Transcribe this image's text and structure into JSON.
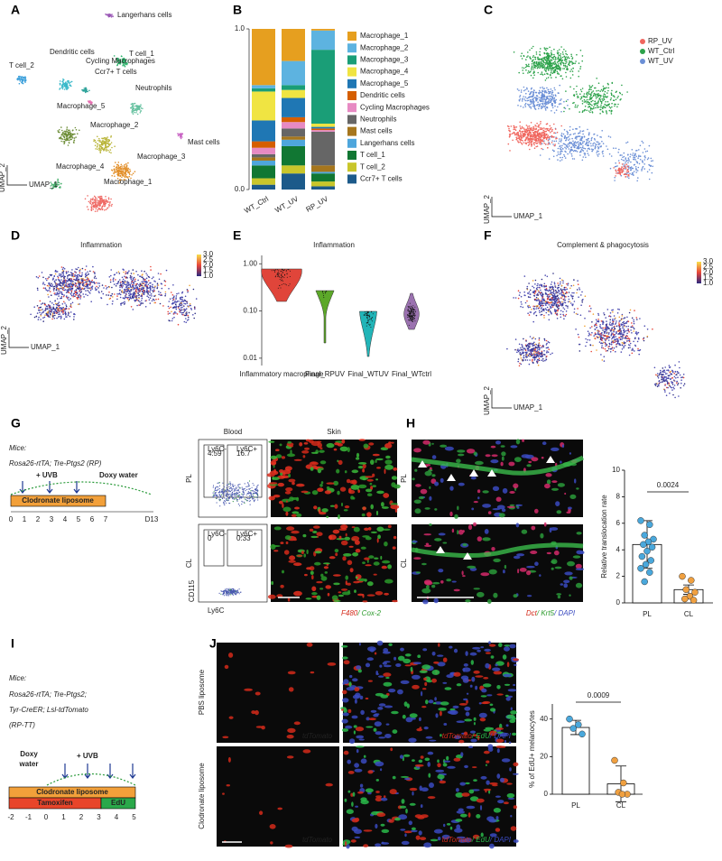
{
  "panel_labels": [
    "A",
    "B",
    "C",
    "D",
    "E",
    "F",
    "G",
    "H",
    "I",
    "J"
  ],
  "umap_a": {
    "clusters": [
      "Langerhans cells",
      "T cell_1",
      "T cell_2",
      "Dendritic cells",
      "Cycling Macrophages",
      "Ccr7+ T cells",
      "Neutrophils",
      "Macrophage_5",
      "Macrophage_2",
      "Mast cells",
      "Macrophage_3",
      "Macrophage_4",
      "Macrophage_1"
    ],
    "x_axis": "UMAP_1",
    "y_axis": "UMAP_2"
  },
  "umap_c": {
    "groups": [
      {
        "name": "RP_UV",
        "color": "#f0665e"
      },
      {
        "name": "WT_Ctrl",
        "color": "#2ca24a"
      },
      {
        "name": "WT_UV",
        "color": "#6b8fd6"
      }
    ],
    "x_axis": "UMAP_1",
    "y_axis": "UMAP_2"
  },
  "umap_d": {
    "title": "Inflammation",
    "colorbar": [
      "3.0",
      "2.5",
      "2.0",
      "1.5",
      "1.0"
    ],
    "x_axis": "UMAP_1",
    "y_axis": "UMAP_2"
  },
  "umap_f": {
    "title": "Complement & phagocytosis",
    "colorbar": [
      "3.0",
      "2.5",
      "2.0",
      "1.5",
      "1.0"
    ],
    "x_axis": "UMAP_1",
    "y_axis": "UMAP_2"
  },
  "panel_g": {
    "mice": "Mice:",
    "strain": "Rosa26-rtTA; Tre-Ptgs2 (RP)",
    "uvb": "+ UVB",
    "doxy": "Doxy water",
    "liposome": "Clodronate liposome",
    "days": [
      "0",
      "1",
      "2",
      "3",
      "4",
      "5",
      "6",
      "7"
    ],
    "end_day": "D13",
    "blood": "Blood",
    "skin": "Skin",
    "rows": [
      "PL",
      "CL"
    ],
    "gates": [
      [
        {
          "name": "Ly6C-",
          "value": 4.59
        },
        {
          "name": "Ly6C+",
          "value": 16.7
        }
      ],
      [
        {
          "name": "Ly6C-",
          "value": 0
        },
        {
          "name": "Ly6C+",
          "value": 0.33
        }
      ]
    ],
    "y_axis": "CD115",
    "x_axis": "Ly6C",
    "stain": [
      "F480",
      "/ Cox-2"
    ]
  },
  "panel_h": {
    "rows": [
      "PL",
      "CL"
    ],
    "stain": [
      "Dct",
      "/ Krt5",
      "/ DAPI"
    ]
  },
  "panel_i": {
    "mice": "Mice:",
    "strain": [
      "Rosa26-rtTA; Tre-Ptgs2;",
      "Tyr-CreER; Lsl-tdTomato",
      "(RP-TT)"
    ],
    "doxy": [
      "Doxy",
      "water"
    ],
    "uvb": "+ UVB",
    "liposome": "Clodronate liposome",
    "tamoxifen": "Tamoxifen",
    "edu": "EdU",
    "days": [
      "-2",
      "-1",
      "0",
      "1",
      "2",
      "3",
      "4",
      "5"
    ]
  },
  "panel_j": {
    "rows": [
      "PBS liposome",
      "Clodronate liposome"
    ],
    "single": "tdTomato",
    "merge": [
      "tdTomato",
      "/ EdU",
      "/ DAPI"
    ]
  },
  "chart_data": [
    {
      "type": "stacked_bar",
      "categories": [
        "WT_Ctrl",
        "WT_UV",
        "RP_UV"
      ],
      "ylim": [
        0,
        1
      ],
      "yticks": [
        {
          "value": 0,
          "label": "0.0"
        },
        {
          "value": 1,
          "label": "1.0"
        }
      ],
      "series": [
        {
          "name": "Macrophage_1",
          "color": "#e69f1f",
          "values": [
            0.35,
            0.2,
            0.01
          ]
        },
        {
          "name": "Macrophage_2",
          "color": "#5db3e0",
          "values": [
            0.02,
            0.15,
            0.12
          ]
        },
        {
          "name": "Macrophage_3",
          "color": "#1a9e77",
          "values": [
            0.02,
            0.03,
            0.46
          ]
        },
        {
          "name": "Macrophage_4",
          "color": "#f0e442",
          "values": [
            0.18,
            0.05,
            0.02
          ]
        },
        {
          "name": "Macrophage_5",
          "color": "#1f77b4",
          "values": [
            0.13,
            0.12,
            0.01
          ]
        },
        {
          "name": "Dendritic cells",
          "color": "#d55e00",
          "values": [
            0.04,
            0.03,
            0.01
          ]
        },
        {
          "name": "Cycling Macrophages",
          "color": "#e78ac3",
          "values": [
            0.04,
            0.04,
            0.01
          ]
        },
        {
          "name": "Neutrophils",
          "color": "#666666",
          "values": [
            0.02,
            0.05,
            0.21
          ]
        },
        {
          "name": "Mast cells",
          "color": "#a6761d",
          "values": [
            0.02,
            0.02,
            0.04
          ]
        },
        {
          "name": "Langerhans cells",
          "color": "#4ea6dc",
          "values": [
            0.03,
            0.04,
            0.01
          ]
        },
        {
          "name": "T cell_1",
          "color": "#117733",
          "values": [
            0.08,
            0.12,
            0.05
          ]
        },
        {
          "name": "T cell_2",
          "color": "#c9c62b",
          "values": [
            0.04,
            0.05,
            0.03
          ]
        },
        {
          "name": "Ccr7+ T cells",
          "color": "#1c5a8a",
          "values": [
            0.03,
            0.1,
            0.02
          ]
        }
      ]
    },
    {
      "type": "violin",
      "title": "Inflammation",
      "categories": [
        "Inflammatory macrophage",
        "Final_RPUV",
        "Final_WTUV",
        "Final_WTctrl"
      ],
      "colors": [
        "#e0453a",
        "#5ca829",
        "#22b5b8",
        "#9b72b0"
      ],
      "log_scale": true,
      "ylim": [
        0.007,
        1.5
      ],
      "yticks": [
        {
          "value": 1,
          "label": "1.00"
        },
        {
          "value": 0.1,
          "label": "0.10"
        },
        {
          "value": 0.01,
          "label": "0.01"
        }
      ]
    },
    {
      "type": "bar",
      "y_label": "Relative translocation rate",
      "categories": [
        "PL",
        "CL"
      ],
      "values": [
        4.4,
        1.0
      ],
      "errors": [
        1.8,
        0.35
      ],
      "points": [
        [
          6.2,
          5.9,
          5.1,
          4.8,
          4.6,
          4.4,
          4.2,
          3.9,
          3.5,
          3.2,
          2.9,
          2.6,
          2.3,
          1.6
        ],
        [
          2.0,
          1.7,
          1.0,
          0.8,
          0.5,
          0.3,
          0.2
        ]
      ],
      "colors": [
        "#4aa8dc",
        "#f0a040"
      ],
      "ylim": [
        0,
        10
      ],
      "yticks": [
        0,
        2,
        4,
        6,
        8,
        10
      ],
      "annotation": "0.0024"
    },
    {
      "type": "bar",
      "y_label": "% of EdU+ melanocytes",
      "categories": [
        "PL",
        "CL"
      ],
      "values": [
        35.5,
        5.5
      ],
      "errors": [
        3.8,
        9.5
      ],
      "points": [
        [
          40,
          37,
          35,
          32
        ],
        [
          18,
          6,
          1,
          0,
          0
        ]
      ],
      "colors": [
        "#4aa8dc",
        "#f0a040"
      ],
      "ylim": [
        0,
        48
      ],
      "yticks": [
        0,
        20,
        40
      ],
      "annotation": "0.0009"
    }
  ]
}
